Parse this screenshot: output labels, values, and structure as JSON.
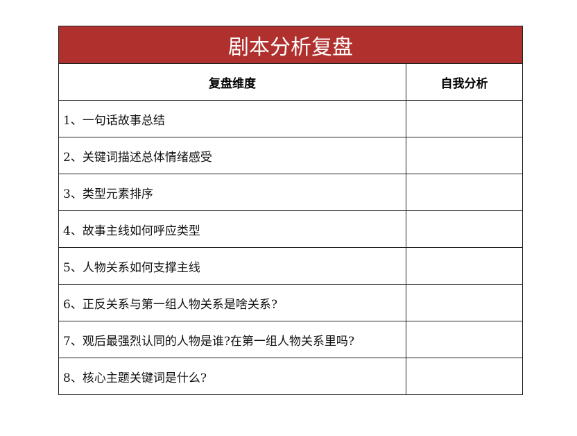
{
  "title": "剧本分析复盘",
  "colors": {
    "title_bg": "#B0302E",
    "title_text": "#FFFFFF",
    "border": "#222222"
  },
  "columns": [
    "复盘维度",
    "自我分析"
  ],
  "rows": [
    {
      "question": "1、一句话故事总结",
      "answer": ""
    },
    {
      "question": "2、关键词描述总体情绪感受",
      "answer": ""
    },
    {
      "question": "3、类型元素排序",
      "answer": ""
    },
    {
      "question": "4、故事主线如何呼应类型",
      "answer": ""
    },
    {
      "question": "5、人物关系如何支撑主线",
      "answer": ""
    },
    {
      "question": "6、正反关系与第一组人物关系是啥关系?",
      "answer": ""
    },
    {
      "question": "7、观后最强烈认同的人物是谁?在第一组人物关系里吗?",
      "answer": ""
    },
    {
      "question": "8、核心主题关键词是什么?",
      "answer": ""
    }
  ]
}
